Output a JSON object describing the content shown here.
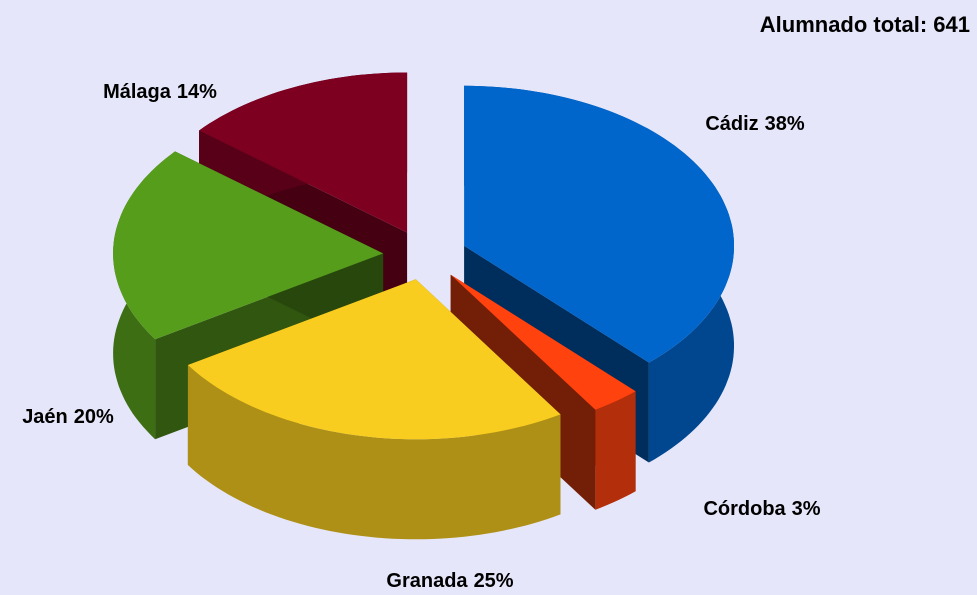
{
  "chart_data": {
    "type": "pie3d",
    "title": "Alumnado total: 641",
    "categories": [
      "Cádiz",
      "Córdoba",
      "Granada",
      "Jaén",
      "Málaga"
    ],
    "values": [
      38,
      3,
      25,
      20,
      14
    ],
    "value_labels": [
      "38%",
      "3%",
      "25%",
      "20%",
      "14%"
    ],
    "colors": [
      "#0066cc",
      "#ff420e",
      "#f8cd1f",
      "#579d1c",
      "#7e0021"
    ]
  }
}
